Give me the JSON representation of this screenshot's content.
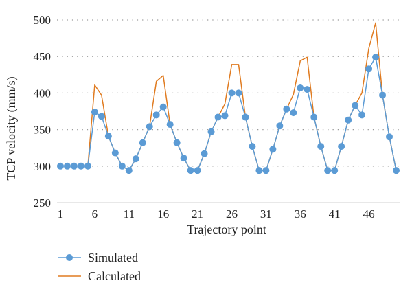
{
  "chart_data": {
    "type": "line",
    "xlabel": "Trajectory point",
    "ylabel": "TCP velocity (mm/s)",
    "ylim": [
      250,
      500
    ],
    "yticks": [
      250,
      300,
      350,
      400,
      450,
      500
    ],
    "xlim": [
      1,
      50
    ],
    "xticks": [
      1,
      6,
      11,
      16,
      21,
      26,
      31,
      36,
      41,
      46
    ],
    "grid": "horizontal dotted",
    "legend_position": "bottom-left",
    "x": [
      1,
      2,
      3,
      4,
      5,
      6,
      7,
      8,
      9,
      10,
      11,
      12,
      13,
      14,
      15,
      16,
      17,
      18,
      19,
      20,
      21,
      22,
      23,
      24,
      25,
      26,
      27,
      28,
      29,
      30,
      31,
      32,
      33,
      34,
      35,
      36,
      37,
      38,
      39,
      40,
      41,
      42,
      43,
      44,
      45,
      46,
      47,
      48,
      49,
      50
    ],
    "series": [
      {
        "name": "Simulated",
        "color": "#5b9bd5",
        "marker": "circle",
        "values": [
          300,
          300,
          300,
          300,
          300,
          374,
          368,
          341,
          318,
          300,
          294,
          310,
          332,
          354,
          370,
          381,
          357,
          332,
          311,
          294,
          294,
          317,
          347,
          367,
          369,
          400,
          400,
          367,
          327,
          294,
          294,
          323,
          355,
          378,
          373,
          407,
          405,
          367,
          327,
          294,
          294,
          327,
          363,
          383,
          370,
          433,
          449,
          397,
          340,
          294
        ]
      },
      {
        "name": "Calculated",
        "color": "#e07b20",
        "marker": "none",
        "values": [
          300,
          300,
          300,
          300,
          300,
          411,
          397,
          341,
          318,
          300,
          294,
          310,
          332,
          354,
          416,
          424,
          357,
          332,
          311,
          294,
          294,
          317,
          347,
          367,
          385,
          439,
          439,
          367,
          327,
          294,
          294,
          323,
          355,
          378,
          398,
          444,
          449,
          367,
          327,
          294,
          294,
          327,
          363,
          383,
          400,
          461,
          496,
          397,
          340,
          294
        ]
      }
    ]
  }
}
